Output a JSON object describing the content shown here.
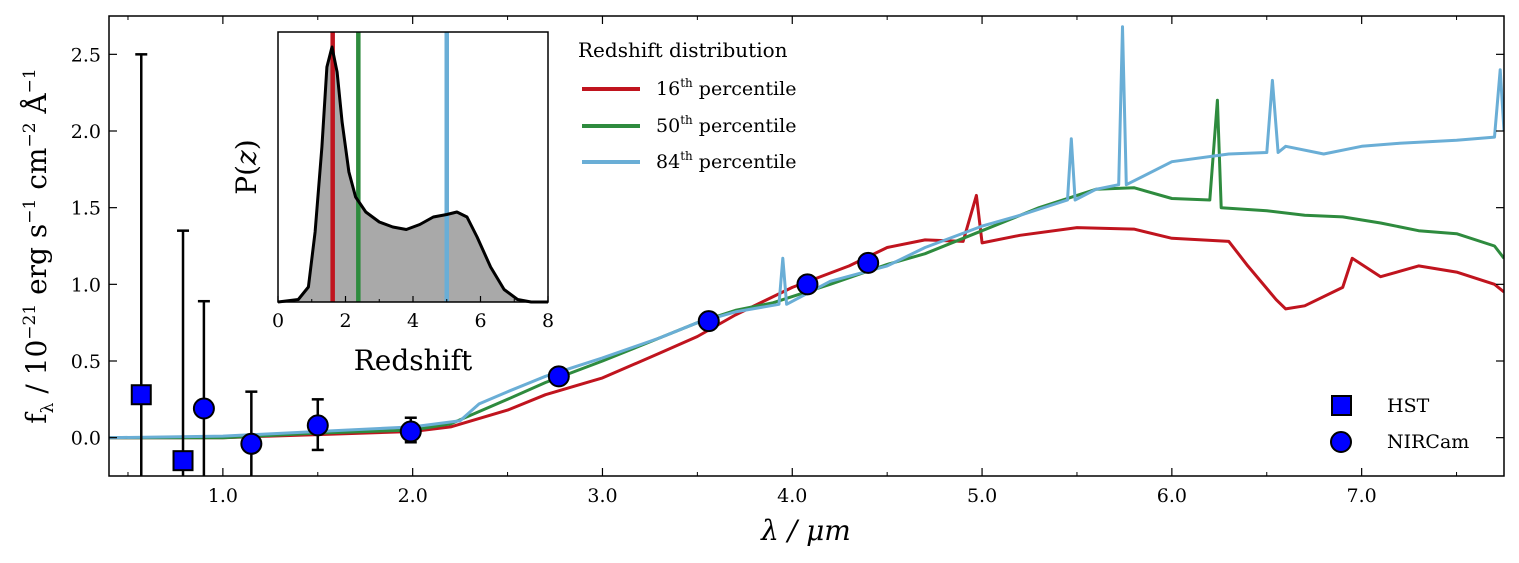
{
  "chart_data": [
    {
      "type": "line",
      "panel": "main",
      "xlabel": "λ / μm",
      "ylabel": "f_λ / 10^−21 erg s^−1 cm^−2 Å^−1",
      "xlim": [
        0.4,
        7.75
      ],
      "ylim": [
        -0.25,
        2.75
      ],
      "xticks": [
        "1.0",
        "2.0",
        "3.0",
        "4.0",
        "5.0",
        "6.0",
        "7.0"
      ],
      "yticks": [
        "0.0",
        "0.5",
        "1.0",
        "1.5",
        "2.0",
        "2.5"
      ],
      "legend_title": "Redshift distribution",
      "legend_placement": "top-center",
      "series": [
        {
          "name": "16th percentile",
          "color": "#c0141e",
          "x": [
            0.4,
            1.0,
            1.5,
            2.0,
            2.2,
            2.5,
            2.7,
            3.0,
            3.3,
            3.5,
            3.7,
            4.0,
            4.3,
            4.5,
            4.7,
            4.9,
            4.97,
            5.0,
            5.2,
            5.5,
            5.8,
            6.0,
            6.3,
            6.4,
            6.55,
            6.6,
            6.7,
            6.9,
            6.95,
            7.1,
            7.3,
            7.5,
            7.7,
            7.75
          ],
          "y": [
            0.0,
            0.0,
            0.02,
            0.04,
            0.07,
            0.18,
            0.28,
            0.39,
            0.55,
            0.66,
            0.8,
            0.98,
            1.12,
            1.24,
            1.29,
            1.28,
            1.58,
            1.27,
            1.32,
            1.37,
            1.36,
            1.3,
            1.28,
            1.12,
            0.9,
            0.84,
            0.86,
            0.98,
            1.17,
            1.05,
            1.12,
            1.08,
            1.0,
            0.95
          ]
        },
        {
          "name": "50th percentile",
          "color": "#2e8b3e",
          "x": [
            0.4,
            1.0,
            1.5,
            2.0,
            2.2,
            2.5,
            2.7,
            3.0,
            3.3,
            3.5,
            3.7,
            3.9,
            4.2,
            4.5,
            4.7,
            5.0,
            5.3,
            5.6,
            5.8,
            6.0,
            6.2,
            6.24,
            6.26,
            6.5,
            6.7,
            6.9,
            7.1,
            7.3,
            7.5,
            7.7,
            7.75
          ],
          "y": [
            0.0,
            0.0,
            0.03,
            0.05,
            0.09,
            0.25,
            0.36,
            0.5,
            0.65,
            0.75,
            0.83,
            0.88,
            1.0,
            1.13,
            1.2,
            1.35,
            1.5,
            1.62,
            1.63,
            1.56,
            1.55,
            2.2,
            1.5,
            1.48,
            1.45,
            1.44,
            1.4,
            1.35,
            1.33,
            1.25,
            1.17
          ]
        },
        {
          "name": "84th percentile",
          "color": "#6aaed6",
          "x": [
            0.4,
            1.0,
            1.5,
            2.0,
            2.25,
            2.35,
            2.5,
            2.7,
            3.0,
            3.3,
            3.5,
            3.7,
            3.93,
            3.95,
            3.97,
            4.2,
            4.5,
            4.7,
            5.0,
            5.2,
            5.45,
            5.47,
            5.49,
            5.6,
            5.72,
            5.74,
            5.76,
            6.0,
            6.3,
            6.5,
            6.53,
            6.56,
            6.6,
            6.8,
            7.0,
            7.2,
            7.5,
            7.7,
            7.73,
            7.75
          ],
          "y": [
            0.0,
            0.01,
            0.04,
            0.07,
            0.11,
            0.22,
            0.3,
            0.4,
            0.52,
            0.65,
            0.75,
            0.82,
            0.87,
            1.17,
            0.87,
            1.02,
            1.12,
            1.24,
            1.38,
            1.45,
            1.55,
            1.95,
            1.55,
            1.62,
            1.65,
            2.68,
            1.65,
            1.8,
            1.85,
            1.86,
            2.33,
            1.86,
            1.9,
            1.85,
            1.9,
            1.92,
            1.94,
            1.96,
            2.4,
            2.0
          ]
        }
      ],
      "points": [
        {
          "name": "HST",
          "marker": "square",
          "color": "#0000ff",
          "x": [
            0.57,
            0.79
          ],
          "y": [
            0.28,
            -0.15
          ],
          "err_low": [
            0.53,
            0.1
          ],
          "err_high": [
            2.22,
            1.5
          ]
        },
        {
          "name": "NIRCam",
          "marker": "circle",
          "color": "#0000ff",
          "x": [
            0.9,
            1.15,
            1.5,
            1.99,
            2.77,
            3.56,
            4.08,
            4.4
          ],
          "y": [
            0.19,
            -0.04,
            0.08,
            0.04,
            0.4,
            0.76,
            1.0,
            1.14
          ],
          "err_low": [
            0.44,
            0.21,
            0.16,
            0.07,
            0,
            0,
            0,
            0
          ],
          "err_high": [
            0.7,
            0.34,
            0.17,
            0.09,
            0,
            0,
            0,
            0
          ]
        }
      ],
      "legend2_placement": "bottom-right"
    },
    {
      "type": "area",
      "panel": "inset",
      "xlabel": "Redshift",
      "ylabel": "P(z)",
      "xlim": [
        0,
        8
      ],
      "ylim": [
        0,
        1.08
      ],
      "xticks": [
        "0",
        "2",
        "4",
        "6",
        "8"
      ],
      "fill_color": "#a9a9a9",
      "x": [
        0.0,
        0.6,
        0.9,
        1.1,
        1.3,
        1.45,
        1.6,
        1.75,
        1.9,
        2.1,
        2.3,
        2.6,
        3.0,
        3.4,
        3.8,
        4.2,
        4.6,
        5.0,
        5.3,
        5.6,
        5.9,
        6.3,
        6.7,
        7.1,
        7.5,
        8.0
      ],
      "y": [
        0.0,
        0.01,
        0.06,
        0.28,
        0.62,
        0.94,
        1.02,
        0.92,
        0.72,
        0.52,
        0.42,
        0.36,
        0.32,
        0.3,
        0.29,
        0.31,
        0.34,
        0.35,
        0.36,
        0.34,
        0.26,
        0.14,
        0.05,
        0.01,
        0.0,
        0.0
      ],
      "percentile_lines": [
        {
          "label": "16th",
          "value": 1.62,
          "color": "#c0141e"
        },
        {
          "label": "50th",
          "value": 2.38,
          "color": "#2e8b3e"
        },
        {
          "label": "84th",
          "value": 5.0,
          "color": "#6aaed6"
        }
      ]
    }
  ],
  "legend": {
    "title": "Redshift distribution",
    "items": [
      {
        "ord": "16",
        "sup": "th",
        "word": "percentile"
      },
      {
        "ord": "50",
        "sup": "th",
        "word": "percentile"
      },
      {
        "ord": "84",
        "sup": "th",
        "word": "percentile"
      }
    ],
    "markers": [
      {
        "label": "HST"
      },
      {
        "label": "NIRCam"
      }
    ]
  }
}
